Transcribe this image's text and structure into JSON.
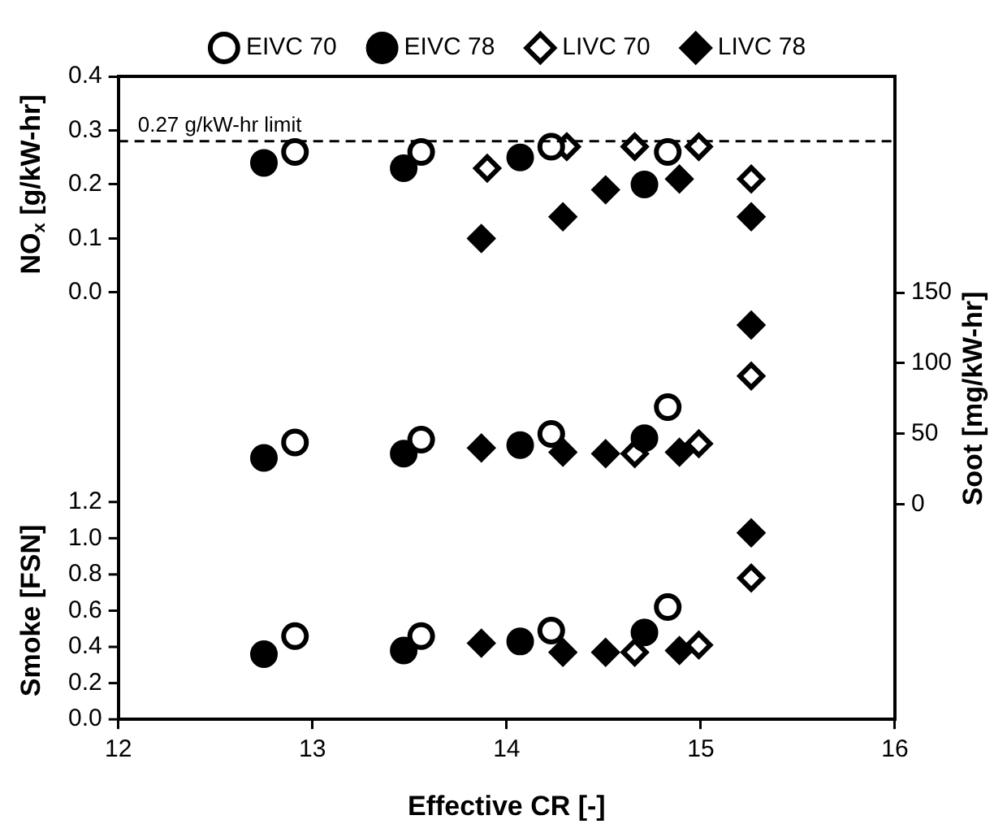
{
  "chart_data": {
    "type": "scatter",
    "xlabel": "Effective CR [-]",
    "ylabel": "NO$_{x}$ [g/kW-hr]",
    "y2label": "Soot [mg/kW-hr]",
    "y3label": "Smoke [FSN]",
    "xlim": [
      12,
      16
    ],
    "xticks": [
      12,
      13,
      14,
      15,
      16
    ],
    "ylim": [
      -0.79,
      0.4
    ],
    "yticks": [
      {
        "value": 0,
        "label": "0.0"
      },
      {
        "value": 0.1,
        "label": "0.1"
      },
      {
        "value": 0.2,
        "label": "0.2"
      },
      {
        "value": 0.3,
        "label": "0.3"
      },
      {
        "value": 0.4,
        "label": "0.4"
      }
    ],
    "y2lim": [
      -152,
      303
    ],
    "y2ticks": [
      0,
      50,
      100,
      150
    ],
    "y3lim": [
      0,
      3.55
    ],
    "y3ticks": [
      {
        "value": 0,
        "label": "0.0"
      },
      {
        "value": 0.2,
        "label": "0.2"
      },
      {
        "value": 0.4,
        "label": "0.4"
      },
      {
        "value": 0.6,
        "label": "0.6"
      },
      {
        "value": 0.8,
        "label": "0.8"
      },
      {
        "value": 1,
        "label": "1.0"
      },
      {
        "value": 1.2,
        "label": "1.2"
      }
    ],
    "grid": false,
    "legend": "top",
    "ref_lines": [
      {
        "axis": "y",
        "value": 0.28,
        "label": "0.27 g/kW-hr limit",
        "line_style": "dashed",
        "color": "#000000"
      }
    ],
    "series": [
      {
        "name": "EIVC 70",
        "axis": "y",
        "marker": "circle",
        "color": "#ffffff",
        "x": [
          12.91,
          13.56,
          14.23,
          14.83
        ],
        "values": [
          0.26,
          0.26,
          0.27,
          0.26
        ]
      },
      {
        "name": "EIVC 78",
        "axis": "y",
        "marker": "circle",
        "color": "#000000",
        "x": [
          12.75,
          13.47,
          14.07,
          14.71
        ],
        "values": [
          0.24,
          0.23,
          0.25,
          0.2
        ]
      },
      {
        "name": "LIVC 70",
        "axis": "y",
        "marker": "diamond",
        "color": "#ffffff",
        "x": [
          13.9,
          14.31,
          14.66,
          14.99,
          15.26
        ],
        "values": [
          0.23,
          0.27,
          0.27,
          0.27,
          0.21
        ]
      },
      {
        "name": "LIVC 78",
        "axis": "y",
        "marker": "diamond",
        "color": "#000000",
        "x": [
          13.87,
          14.29,
          14.51,
          14.89,
          15.26
        ],
        "values": [
          0.1,
          0.14,
          0.19,
          0.21,
          0.14
        ]
      },
      {
        "axis": "y2",
        "marker": "circle",
        "color": "#ffffff",
        "x": [
          12.91,
          13.56,
          14.23,
          14.83
        ],
        "values": [
          44,
          46,
          50,
          69
        ]
      },
      {
        "axis": "y2",
        "marker": "circle",
        "color": "#000000",
        "x": [
          12.75,
          13.47,
          14.07,
          14.71
        ],
        "values": [
          33,
          36,
          42,
          47
        ]
      },
      {
        "axis": "y2",
        "marker": "diamond",
        "color": "#ffffff",
        "x": [
          14.66,
          14.99,
          15.26
        ],
        "values": [
          36,
          43,
          91
        ]
      },
      {
        "axis": "y2",
        "marker": "diamond",
        "color": "#000000",
        "x": [
          13.87,
          14.29,
          14.51,
          14.89,
          15.26
        ],
        "values": [
          40,
          37,
          36,
          37,
          127
        ]
      },
      {
        "axis": "y3",
        "marker": "circle",
        "color": "#ffffff",
        "x": [
          12.91,
          13.56,
          14.23,
          14.83
        ],
        "values": [
          0.46,
          0.46,
          0.49,
          0.62
        ]
      },
      {
        "axis": "y3",
        "marker": "circle",
        "color": "#000000",
        "x": [
          12.75,
          13.47,
          14.07,
          14.71
        ],
        "values": [
          0.36,
          0.38,
          0.43,
          0.48
        ]
      },
      {
        "axis": "y3",
        "marker": "diamond",
        "color": "#ffffff",
        "x": [
          14.66,
          14.99,
          15.26
        ],
        "values": [
          0.37,
          0.41,
          0.78
        ]
      },
      {
        "axis": "y3",
        "marker": "diamond",
        "color": "#000000",
        "x": [
          13.87,
          14.29,
          14.51,
          14.89,
          15.26
        ],
        "values": [
          0.42,
          0.37,
          0.37,
          0.38,
          1.03
        ]
      }
    ]
  }
}
